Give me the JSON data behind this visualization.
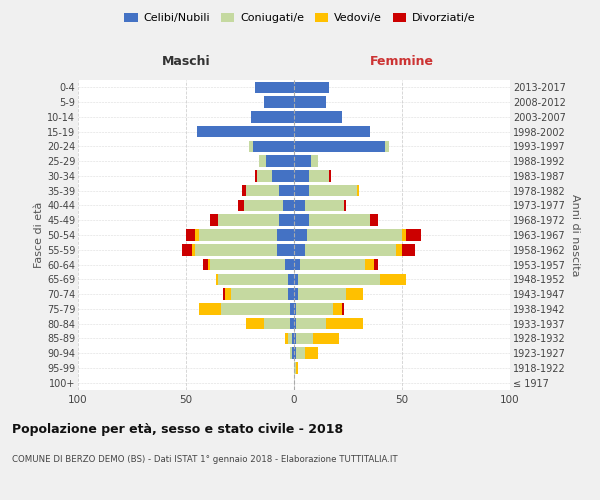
{
  "age_groups": [
    "100+",
    "95-99",
    "90-94",
    "85-89",
    "80-84",
    "75-79",
    "70-74",
    "65-69",
    "60-64",
    "55-59",
    "50-54",
    "45-49",
    "40-44",
    "35-39",
    "30-34",
    "25-29",
    "20-24",
    "15-19",
    "10-14",
    "5-9",
    "0-4"
  ],
  "birth_years": [
    "≤ 1917",
    "1918-1922",
    "1923-1927",
    "1928-1932",
    "1933-1937",
    "1938-1942",
    "1943-1947",
    "1948-1952",
    "1953-1957",
    "1958-1962",
    "1963-1967",
    "1968-1972",
    "1973-1977",
    "1978-1982",
    "1983-1987",
    "1988-1992",
    "1993-1997",
    "1998-2002",
    "2003-2007",
    "2008-2012",
    "2013-2017"
  ],
  "male_celibi": [
    0,
    0,
    1,
    1,
    2,
    2,
    3,
    3,
    4,
    8,
    8,
    7,
    5,
    7,
    10,
    13,
    19,
    45,
    20,
    14,
    18
  ],
  "male_coniugati": [
    0,
    0,
    1,
    2,
    12,
    32,
    26,
    32,
    35,
    38,
    36,
    28,
    18,
    15,
    7,
    3,
    2,
    0,
    0,
    0,
    0
  ],
  "male_vedovi": [
    0,
    0,
    0,
    1,
    8,
    10,
    3,
    1,
    1,
    1,
    2,
    0,
    0,
    0,
    0,
    0,
    0,
    0,
    0,
    0,
    0
  ],
  "male_divorziati": [
    0,
    0,
    0,
    0,
    0,
    0,
    1,
    0,
    2,
    5,
    4,
    4,
    3,
    2,
    1,
    0,
    0,
    0,
    0,
    0,
    0
  ],
  "female_celibi": [
    0,
    0,
    1,
    1,
    1,
    1,
    2,
    2,
    3,
    5,
    6,
    7,
    5,
    7,
    7,
    8,
    42,
    35,
    22,
    15,
    16
  ],
  "female_coniugati": [
    0,
    1,
    4,
    8,
    14,
    17,
    22,
    38,
    30,
    42,
    44,
    28,
    18,
    22,
    9,
    3,
    2,
    0,
    0,
    0,
    0
  ],
  "female_vedovi": [
    0,
    1,
    6,
    12,
    17,
    4,
    8,
    12,
    4,
    3,
    2,
    0,
    0,
    1,
    0,
    0,
    0,
    0,
    0,
    0,
    0
  ],
  "female_divorziati": [
    0,
    0,
    0,
    0,
    0,
    1,
    0,
    0,
    2,
    6,
    7,
    4,
    1,
    0,
    1,
    0,
    0,
    0,
    0,
    0,
    0
  ],
  "colors": {
    "celibi": "#4472c4",
    "coniugati": "#c5d9a0",
    "vedovi": "#ffc000",
    "divorziati": "#cc0000"
  },
  "legend_labels": [
    "Celibi/Nubili",
    "Coniugati/e",
    "Vedovi/e",
    "Divorziati/e"
  ],
  "title": "Popolazione per età, sesso e stato civile - 2018",
  "subtitle": "COMUNE DI BERZO DEMO (BS) - Dati ISTAT 1° gennaio 2018 - Elaborazione TUTTITALIA.IT",
  "xlabel_left": "Maschi",
  "xlabel_right": "Femmine",
  "ylabel_left": "Fasce di età",
  "ylabel_right": "Anni di nascita",
  "xlim": 100,
  "bg_color": "#f0f0f0",
  "plot_bg_color": "#ffffff",
  "grid_color": "#cccccc"
}
